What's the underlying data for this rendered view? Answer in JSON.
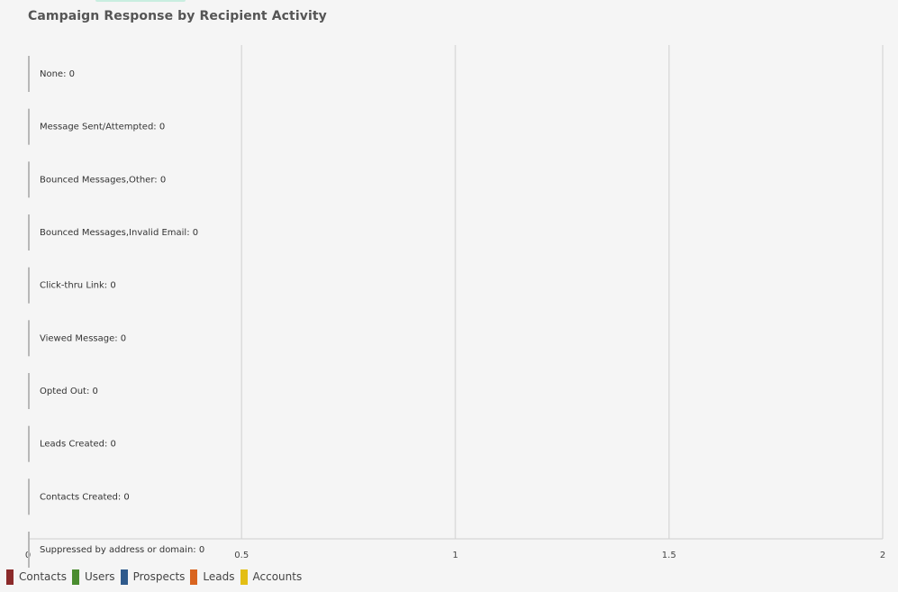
{
  "chart_data": {
    "type": "bar",
    "orientation": "horizontal",
    "title": "Campaign Response by Recipient Activity",
    "categories": [
      "None",
      "Message Sent/Attempted",
      "Bounced Messages,Other",
      "Bounced Messages,Invalid Email",
      "Click-thru Link",
      "Viewed Message",
      "Opted Out",
      "Leads Created",
      "Contacts Created",
      "Suppressed by address or domain"
    ],
    "category_labels": [
      "None: 0",
      "Message Sent/Attempted: 0",
      "Bounced Messages,Other: 0",
      "Bounced Messages,Invalid Email: 0",
      "Click-thru Link: 0",
      "Viewed Message: 0",
      "Opted Out: 0",
      "Leads Created: 0",
      "Contacts Created: 0",
      "Suppressed by address or domain: 0"
    ],
    "series": [
      {
        "name": "Contacts",
        "color": "#8b2a2a",
        "values": [
          0,
          0,
          0,
          0,
          0,
          0,
          0,
          0,
          0,
          0
        ]
      },
      {
        "name": "Users",
        "color": "#4a8c2f",
        "values": [
          0,
          0,
          0,
          0,
          0,
          0,
          0,
          0,
          0,
          0
        ]
      },
      {
        "name": "Prospects",
        "color": "#2f5a8c",
        "values": [
          0,
          0,
          0,
          0,
          0,
          0,
          0,
          0,
          0,
          0
        ]
      },
      {
        "name": "Leads",
        "color": "#d9641f",
        "values": [
          0,
          0,
          0,
          0,
          0,
          0,
          0,
          0,
          0,
          0
        ]
      },
      {
        "name": "Accounts",
        "color": "#e3be14",
        "values": [
          0,
          0,
          0,
          0,
          0,
          0,
          0,
          0,
          0,
          0
        ]
      }
    ],
    "xlim": [
      0,
      2
    ],
    "x_ticks": [
      "0",
      "0.5",
      "1",
      "1.5",
      "2"
    ],
    "grid": true,
    "legend_position": "bottom-left"
  }
}
